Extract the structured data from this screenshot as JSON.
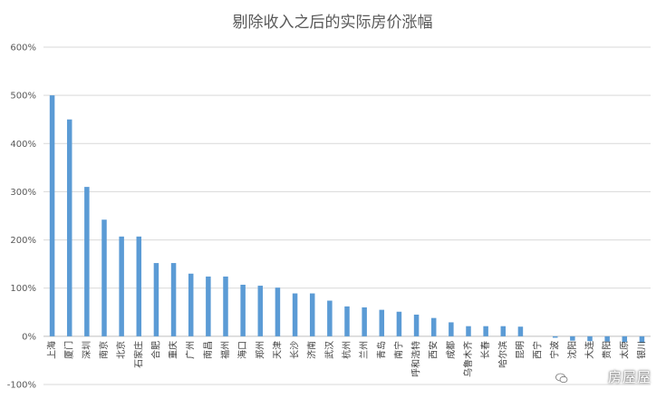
{
  "chart_data": {
    "type": "bar",
    "title": "剔除收入之后的实际房价涨幅",
    "xlabel": "",
    "ylabel": "",
    "ylim": [
      -100,
      600
    ],
    "yticks": [
      -100,
      0,
      100,
      200,
      300,
      400,
      500,
      600
    ],
    "ytick_labels": [
      "-100%",
      "0%",
      "100%",
      "200%",
      "300%",
      "400%",
      "500%",
      "600%"
    ],
    "grid": true,
    "legend": "none",
    "bar_color": "#5b9bd5",
    "categories": [
      "上海",
      "厦门",
      "深圳",
      "南京",
      "北京",
      "石家庄",
      "合肥",
      "重庆",
      "广州",
      "南昌",
      "福州",
      "海口",
      "郑州",
      "天津",
      "长沙",
      "济南",
      "武汉",
      "杭州",
      "兰州",
      "青岛",
      "南宁",
      "呼和浩特",
      "西安",
      "成都",
      "乌鲁木齐",
      "长春",
      "哈尔滨",
      "昆明",
      "西宁",
      "宁波",
      "沈阳",
      "大连",
      "贵阳",
      "太原",
      "银川"
    ],
    "values": [
      500,
      450,
      310,
      242,
      207,
      207,
      152,
      152,
      130,
      124,
      124,
      107,
      105,
      101,
      89,
      89,
      74,
      62,
      60,
      55,
      51,
      45,
      38,
      29,
      21,
      21,
      21,
      20,
      0,
      -3,
      -9,
      -10,
      -11,
      -12,
      -14
    ]
  },
  "watermark": {
    "text": "房屋屋",
    "icon": "wechat-logo-icon"
  }
}
